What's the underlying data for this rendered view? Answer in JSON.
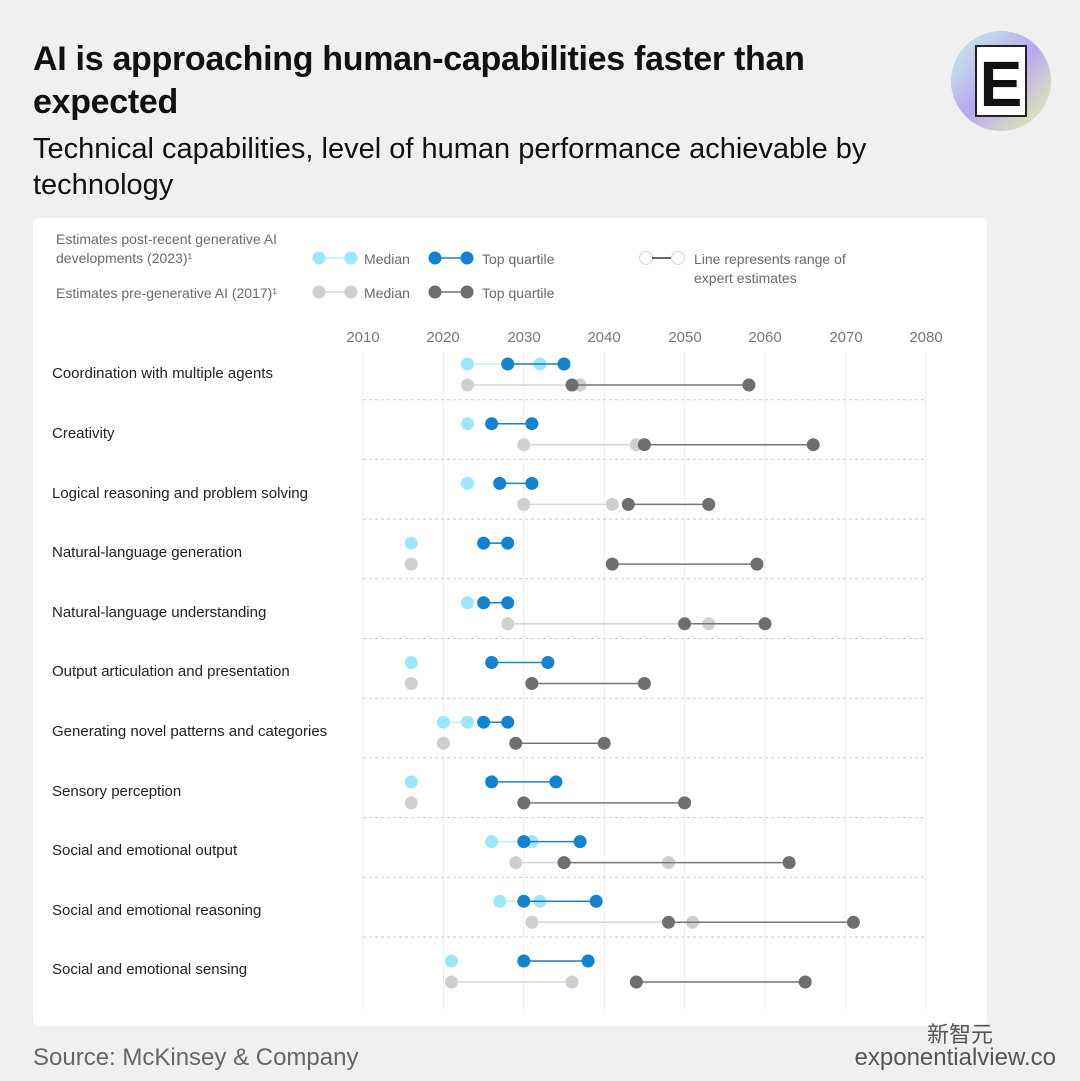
{
  "header": {
    "title": "AI is approaching human-capabilities faster than expected",
    "subtitle": "Technical capabilities, level of human performance achievable by technology"
  },
  "legend": {
    "group_2023": "Estimates post-recent generative AI developments (2023)¹",
    "group_2017": "Estimates pre-generative AI (2017)¹",
    "median_label": "Median",
    "top_quartile_label": "Top quartile",
    "range_note": "Line represents range of expert estimates"
  },
  "colors": {
    "median_2023": "#9ee6fa",
    "top_2023": "#1581cf",
    "median_2017": "#cfcfcf",
    "top_2017": "#6e6e6e"
  },
  "logo": {
    "letter": "E"
  },
  "chart_data": {
    "type": "dumbbell",
    "title": "Technical capabilities, level of human performance achievable by technology",
    "x_ticks": [
      2010,
      2020,
      2030,
      2040,
      2050,
      2060,
      2070,
      2080
    ],
    "xlim": [
      2010,
      2080
    ],
    "series_names": [
      "Median (2023)",
      "Top quartile (2023)",
      "Median (2017)",
      "Top quartile (2017)"
    ],
    "categories": [
      "Coordination with multiple agents",
      "Creativity",
      "Logical reasoning and problem solving",
      "Natural-language generation",
      "Natural-language understanding",
      "Output articulation and presentation",
      "Generating novel patterns and categories",
      "Sensory perception",
      "Social and emotional output",
      "Social and emotional reasoning",
      "Social and emotional sensing"
    ],
    "rows": [
      {
        "median_2023": [
          2023,
          2032
        ],
        "top_2023": [
          2028,
          2035
        ],
        "median_2017": [
          2023,
          2037
        ],
        "top_2017": [
          2036,
          2058
        ]
      },
      {
        "median_2023": [
          2023,
          2023
        ],
        "top_2023": [
          2026,
          2031
        ],
        "median_2017": [
          2030,
          2044
        ],
        "top_2017": [
          2045,
          2066
        ]
      },
      {
        "median_2023": [
          2023,
          2023
        ],
        "top_2023": [
          2027,
          2031
        ],
        "median_2017": [
          2030,
          2041
        ],
        "top_2017": [
          2043,
          2053
        ]
      },
      {
        "median_2023": [
          2016,
          2016
        ],
        "top_2023": [
          2025,
          2028
        ],
        "median_2017": [
          2016,
          2016
        ],
        "top_2017": [
          2041,
          2059
        ]
      },
      {
        "median_2023": [
          2023,
          2023
        ],
        "top_2023": [
          2025,
          2028
        ],
        "median_2017": [
          2028,
          2053
        ],
        "top_2017": [
          2050,
          2060
        ]
      },
      {
        "median_2023": [
          2016,
          2016
        ],
        "top_2023": [
          2026,
          2033
        ],
        "median_2017": [
          2016,
          2016
        ],
        "top_2017": [
          2031,
          2045
        ]
      },
      {
        "median_2023": [
          2020,
          2023
        ],
        "top_2023": [
          2025,
          2028
        ],
        "median_2017": [
          2020,
          2020
        ],
        "top_2017": [
          2029,
          2040
        ]
      },
      {
        "median_2023": [
          2016,
          2016
        ],
        "top_2023": [
          2026,
          2034
        ],
        "median_2017": [
          2016,
          2016
        ],
        "top_2017": [
          2030,
          2050
        ]
      },
      {
        "median_2023": [
          2026,
          2031
        ],
        "top_2023": [
          2030,
          2037
        ],
        "median_2017": [
          2029,
          2048
        ],
        "top_2017": [
          2035,
          2063
        ]
      },
      {
        "median_2023": [
          2027,
          2032
        ],
        "top_2023": [
          2030,
          2039
        ],
        "median_2017": [
          2031,
          2051
        ],
        "top_2017": [
          2048,
          2071
        ]
      },
      {
        "median_2023": [
          2021,
          2021
        ],
        "top_2023": [
          2030,
          2038
        ],
        "median_2017": [
          2021,
          2036
        ],
        "top_2017": [
          2044,
          2065
        ]
      }
    ]
  },
  "footer": {
    "source": "Source: McKinsey & Company",
    "credit": "exponentialview.co",
    "watermark": "新智元"
  }
}
